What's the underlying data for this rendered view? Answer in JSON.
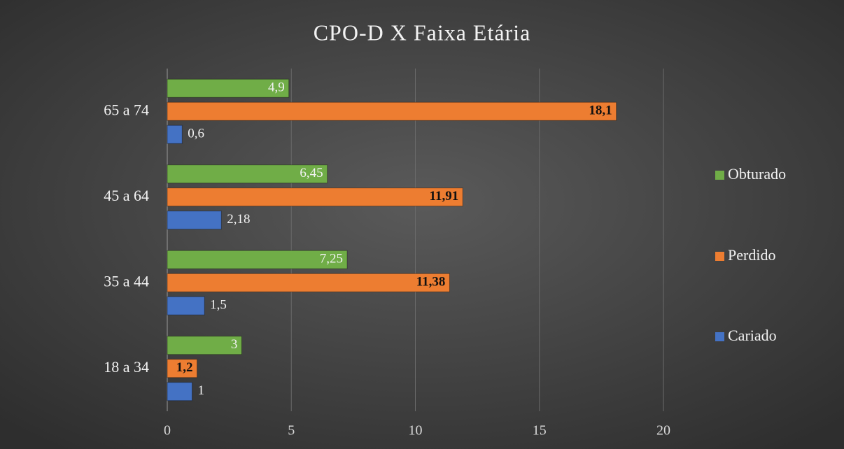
{
  "chart_data": {
    "type": "bar",
    "orientation": "horizontal",
    "title": "CPO-D X Faixa Etária",
    "categories": [
      "18 a 34",
      "35 a 44",
      "45 a 64",
      "65 a 74"
    ],
    "series": [
      {
        "name": "Cariado",
        "color": "#4472c4",
        "values": [
          1,
          1.5,
          2.18,
          0.6
        ],
        "value_labels": [
          "1",
          "1,5",
          "2,18",
          "0,6"
        ]
      },
      {
        "name": "Perdido",
        "color": "#ed7d31",
        "values": [
          1.2,
          11.38,
          11.91,
          18.1
        ],
        "value_labels": [
          "1,2",
          "11,38",
          "11,91",
          "18,1"
        ]
      },
      {
        "name": "Obturado",
        "color": "#70ad47",
        "values": [
          3,
          7.25,
          6.45,
          4.9
        ],
        "value_labels": [
          "3",
          "7,25",
          "6,45",
          "4,9"
        ]
      }
    ],
    "xlim": [
      0,
      20
    ],
    "xticks": [
      0,
      5,
      10,
      15,
      20
    ],
    "grid": true,
    "legend": "right"
  }
}
